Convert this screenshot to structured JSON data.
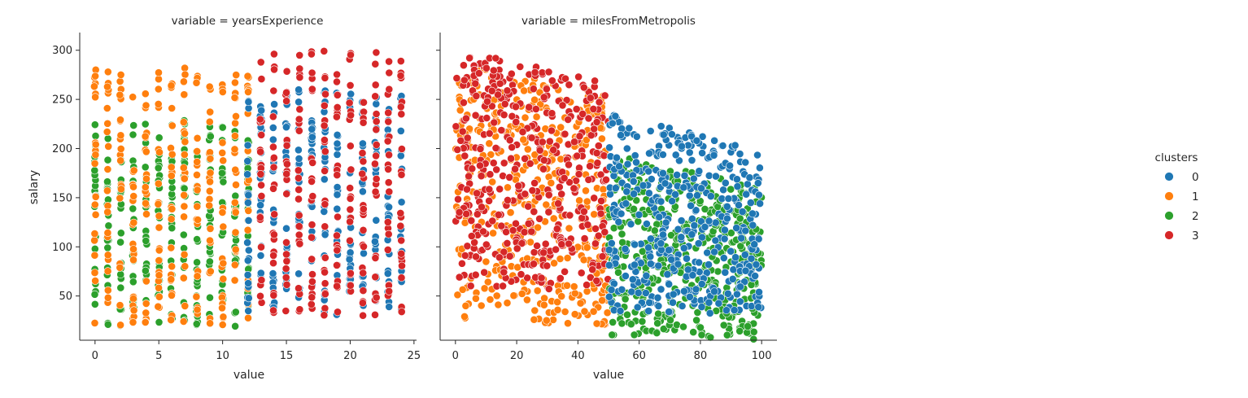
{
  "chart_data": {
    "type": "scatter",
    "ylabel": "salary",
    "yticks": [
      50,
      100,
      150,
      200,
      250,
      300
    ],
    "ylim": [
      5,
      318
    ],
    "legend": {
      "title": "clusters",
      "placement": "right",
      "entries": [
        {
          "label": "0",
          "color": "#1f77b4"
        },
        {
          "label": "1",
          "color": "#ff7f0e"
        },
        {
          "label": "2",
          "color": "#2ca02c"
        },
        {
          "label": "3",
          "color": "#d62728"
        }
      ]
    },
    "panels": [
      {
        "title": "variable = yearsExperience",
        "xlabel": "value",
        "xticks": [
          0,
          5,
          10,
          15,
          20,
          25
        ],
        "xlim": [
          -1.2,
          25.2
        ],
        "x_kind": "integer",
        "clusters": [
          {
            "cluster": "0",
            "x_range": [
              12,
              24
            ],
            "y_range": [
              30,
              260
            ]
          },
          {
            "cluster": "1",
            "x_range": [
              0,
              12
            ],
            "y_range": [
              20,
              283
            ]
          },
          {
            "cluster": "2",
            "x_range": [
              0,
              12
            ],
            "y_range": [
              18,
              230
            ]
          },
          {
            "cluster": "3",
            "x_range": [
              13,
              24
            ],
            "y_range": [
              30,
              302
            ]
          }
        ]
      },
      {
        "title": "variable = milesFromMetropolis",
        "xlabel": "value",
        "xticks": [
          0,
          20,
          40,
          60,
          80,
          100
        ],
        "xlim": [
          -5,
          105
        ],
        "x_kind": "continuous",
        "clusters": [
          {
            "cluster": "0",
            "x_range": [
              50,
              100
            ],
            "y_range": [
              40,
              270
            ]
          },
          {
            "cluster": "1",
            "x_range": [
              0,
              50
            ],
            "y_range": [
              25,
              290
            ]
          },
          {
            "cluster": "2",
            "x_range": [
              50,
              100
            ],
            "y_range": [
              15,
              230
            ]
          },
          {
            "cluster": "3",
            "x_range": [
              0,
              50
            ],
            "y_range": [
              60,
              302
            ]
          }
        ]
      }
    ]
  }
}
